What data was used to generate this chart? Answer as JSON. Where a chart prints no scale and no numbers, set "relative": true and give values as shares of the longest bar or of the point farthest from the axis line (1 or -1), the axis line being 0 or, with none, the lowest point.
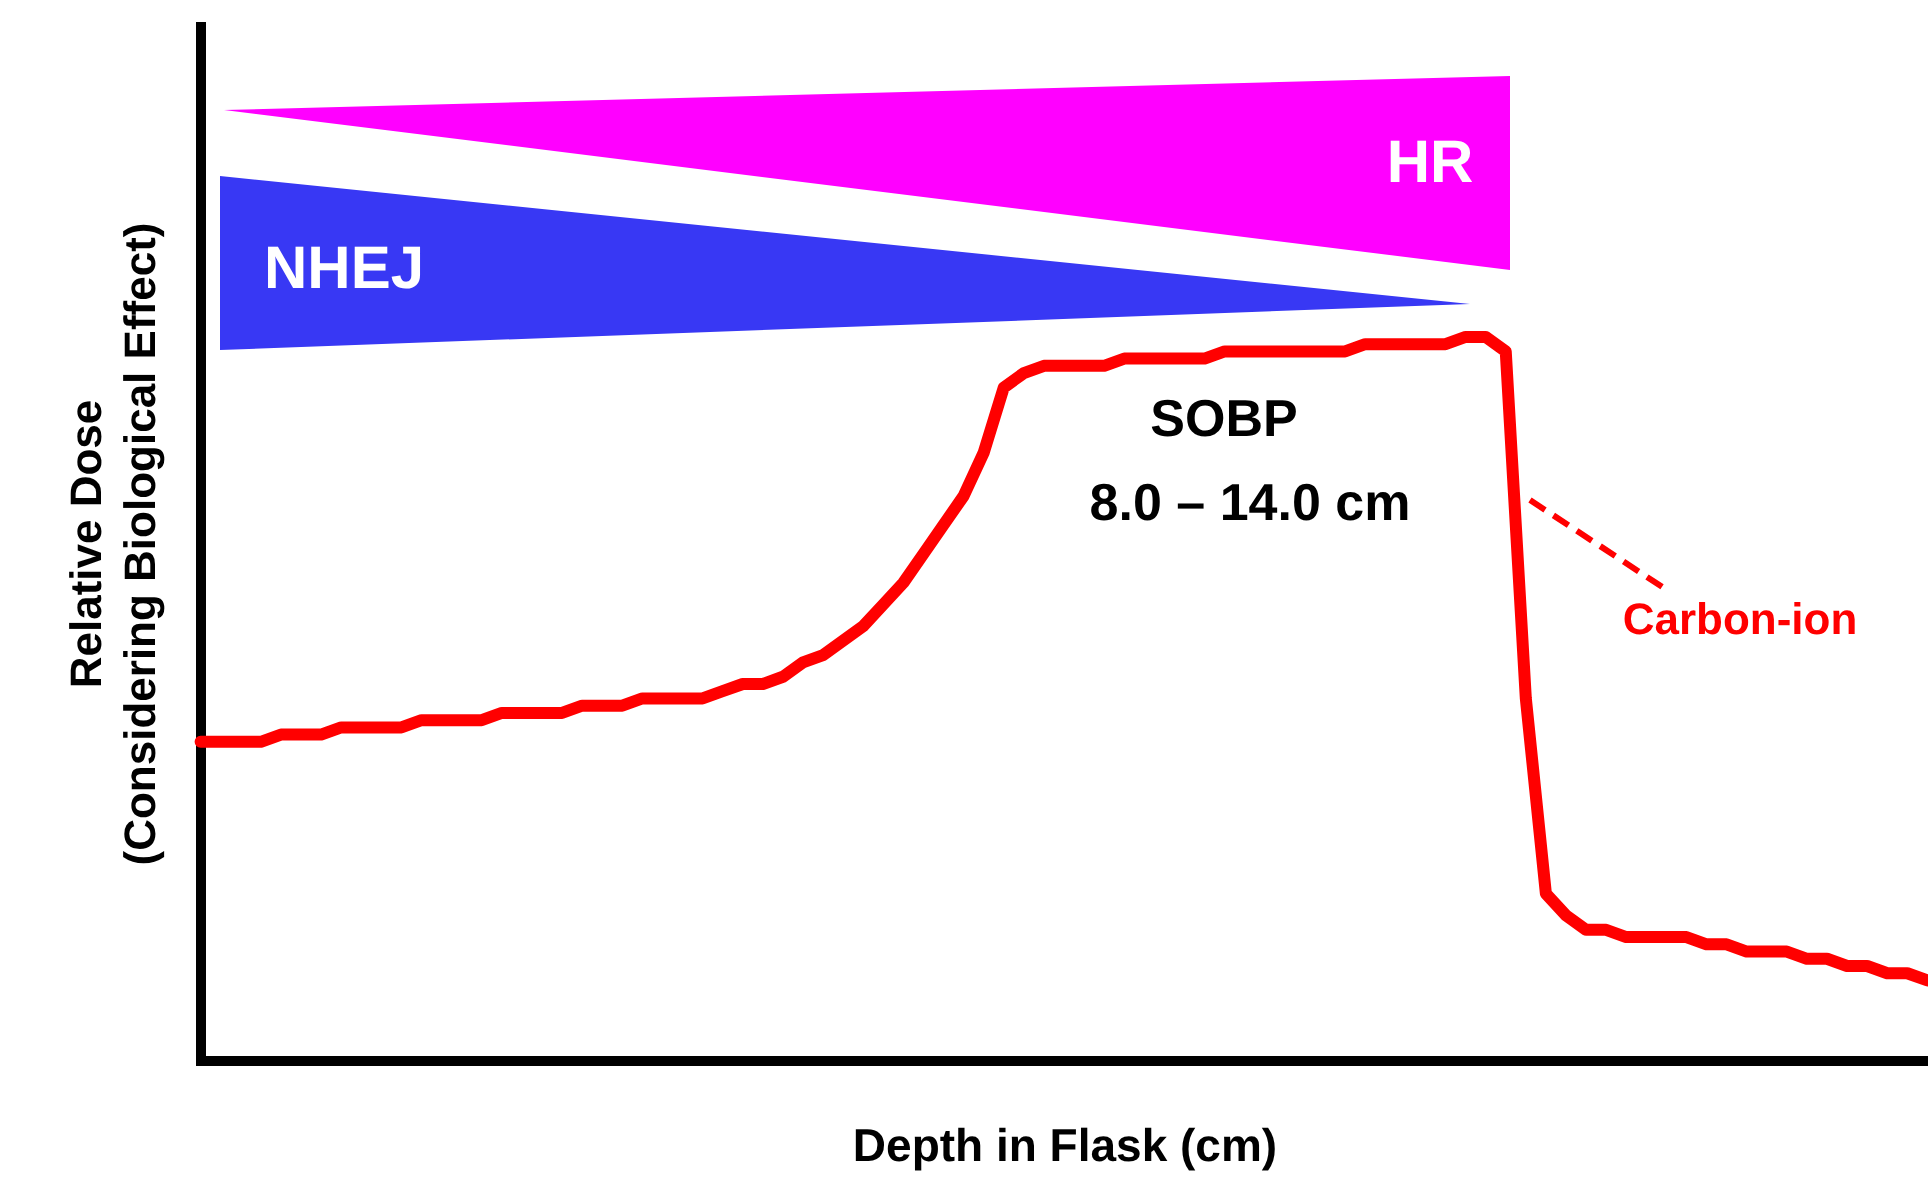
{
  "chart_data": {
    "type": "line",
    "relative": true,
    "xlabel": "Depth in Flask (cm)",
    "ylabel": "Relative Dose\n(Considering Biological Effect)",
    "categories": [
      null,
      null,
      null,
      null,
      null,
      null,
      null,
      null,
      null,
      null,
      null,
      null,
      null,
      null,
      null,
      null,
      null,
      null,
      null,
      null,
      null,
      null,
      null,
      null,
      null,
      null,
      null,
      null,
      null,
      null,
      null,
      null,
      null,
      null,
      null,
      null,
      null,
      null,
      null,
      null,
      null,
      null,
      null,
      null,
      null,
      null,
      null,
      null,
      null,
      null,
      null,
      null,
      null,
      null,
      null,
      null,
      null,
      null,
      null,
      null,
      null,
      null,
      null,
      null,
      null,
      null,
      null,
      null,
      null,
      null,
      null,
      null,
      null,
      null,
      null,
      null,
      null,
      null,
      null,
      null,
      null,
      null,
      null,
      null,
      null,
      null,
      null
    ],
    "series": [
      {
        "name": "Carbon-ion",
        "color": "#ff0000",
        "values": [
          0.44,
          0.44,
          0.44,
          0.44,
          0.45,
          0.45,
          0.45,
          0.46,
          0.46,
          0.46,
          0.46,
          0.47,
          0.47,
          0.47,
          0.47,
          0.48,
          0.48,
          0.48,
          0.48,
          0.49,
          0.49,
          0.49,
          0.5,
          0.5,
          0.5,
          0.5,
          0.51,
          0.52,
          0.52,
          0.53,
          0.55,
          0.56,
          0.58,
          0.6,
          0.63,
          0.66,
          0.7,
          0.74,
          0.78,
          0.84,
          0.93,
          0.95,
          0.96,
          0.96,
          0.96,
          0.96,
          0.97,
          0.97,
          0.97,
          0.97,
          0.97,
          0.98,
          0.98,
          0.98,
          0.98,
          0.98,
          0.98,
          0.98,
          0.99,
          0.99,
          0.99,
          0.99,
          0.99,
          1.0,
          1.0,
          0.98,
          0.5,
          0.23,
          0.2,
          0.18,
          0.18,
          0.17,
          0.17,
          0.17,
          0.17,
          0.16,
          0.16,
          0.15,
          0.15,
          0.15,
          0.14,
          0.14,
          0.13,
          0.13,
          0.12,
          0.12,
          0.11
        ]
      }
    ],
    "annotations": [
      "NHEJ",
      "HR",
      "SOBP",
      "8.0 – 14.0 cm"
    ],
    "grid": false,
    "legend": "right",
    "marker": "none",
    "line_style": "solid"
  }
}
